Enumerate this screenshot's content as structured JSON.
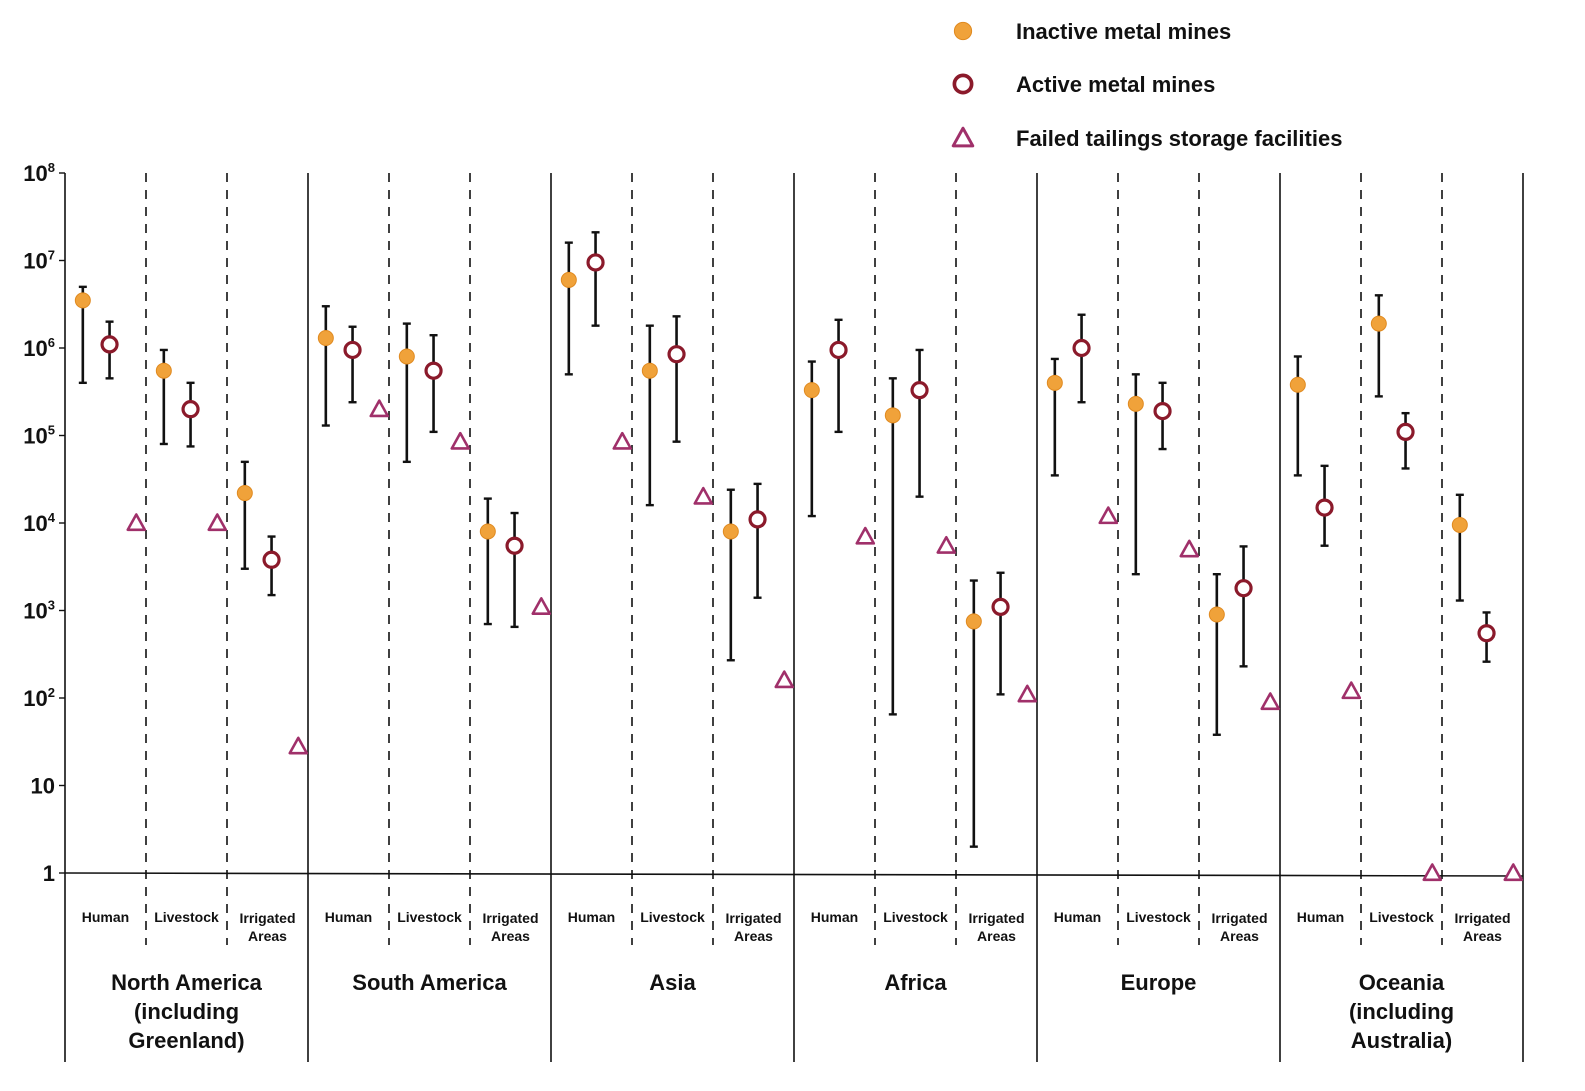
{
  "chart_data": {
    "type": "scatter",
    "title": "",
    "xlabel": "",
    "ylabel": "",
    "yscale": "log",
    "ylim": [
      1,
      100000000
    ],
    "y_ticks": [
      {
        "value": 1,
        "label": "1"
      },
      {
        "value": 10,
        "label": "10"
      },
      {
        "value": 100,
        "base": "10",
        "exp": "2"
      },
      {
        "value": 1000,
        "base": "10",
        "exp": "3"
      },
      {
        "value": 10000,
        "base": "10",
        "exp": "4"
      },
      {
        "value": 100000,
        "base": "10",
        "exp": "5"
      },
      {
        "value": 1000000,
        "base": "10",
        "exp": "6"
      },
      {
        "value": 10000000,
        "base": "10",
        "exp": "7"
      },
      {
        "value": 100000000,
        "base": "10",
        "exp": "8"
      }
    ],
    "legend_position": "top-right",
    "colors": {
      "inactive": "#f0a23a",
      "active": "#8b1a2b",
      "failed": "#a0306a",
      "axis": "#111111"
    },
    "series": [
      {
        "key": "inactive",
        "name": "Inactive metal mines",
        "marker": "filled-circle"
      },
      {
        "key": "active",
        "name": "Active metal mines",
        "marker": "open-circle"
      },
      {
        "key": "failed",
        "name": "Failed tailings storage facilities",
        "marker": "open-triangle"
      }
    ],
    "regions": [
      {
        "label_lines": [
          "North America",
          "(including",
          "Greenland)"
        ],
        "categories": [
          {
            "label_lines": [
              "Human"
            ],
            "inactive": {
              "value": 3500000,
              "low": 400000,
              "high": 5000000
            },
            "active": {
              "value": 1100000,
              "low": 450000,
              "high": 2000000
            },
            "failed": 10000
          },
          {
            "label_lines": [
              "Livestock"
            ],
            "inactive": {
              "value": 550000,
              "low": 80000,
              "high": 950000
            },
            "active": {
              "value": 200000,
              "low": 75000,
              "high": 400000
            },
            "failed": 10000
          },
          {
            "label_lines": [
              "Irrigated",
              "Areas"
            ],
            "inactive": {
              "value": 22000,
              "low": 3000,
              "high": 50000
            },
            "active": {
              "value": 3800,
              "low": 1500,
              "high": 7000
            },
            "failed": 28
          }
        ]
      },
      {
        "label_lines": [
          "South America"
        ],
        "categories": [
          {
            "label_lines": [
              "Human"
            ],
            "inactive": {
              "value": 1300000,
              "low": 130000,
              "high": 3000000
            },
            "active": {
              "value": 950000,
              "low": 240000,
              "high": 1750000
            },
            "failed": 200000
          },
          {
            "label_lines": [
              "Livestock"
            ],
            "inactive": {
              "value": 800000,
              "low": 50000,
              "high": 1900000
            },
            "active": {
              "value": 550000,
              "low": 110000,
              "high": 1400000
            },
            "failed": 85000
          },
          {
            "label_lines": [
              "Irrigated",
              "Areas"
            ],
            "inactive": {
              "value": 8000,
              "low": 700,
              "high": 19000
            },
            "active": {
              "value": 5500,
              "low": 650,
              "high": 13000
            },
            "failed": 1100
          }
        ]
      },
      {
        "label_lines": [
          "Asia"
        ],
        "categories": [
          {
            "label_lines": [
              "Human"
            ],
            "inactive": {
              "value": 6000000,
              "low": 500000,
              "high": 16000000
            },
            "active": {
              "value": 9500000,
              "low": 1800000,
              "high": 21000000
            },
            "failed": 85000
          },
          {
            "label_lines": [
              "Livestock"
            ],
            "inactive": {
              "value": 550000,
              "low": 16000,
              "high": 1800000
            },
            "active": {
              "value": 850000,
              "low": 85000,
              "high": 2300000
            },
            "failed": 20000
          },
          {
            "label_lines": [
              "Irrigated",
              "Areas"
            ],
            "inactive": {
              "value": 8000,
              "low": 270,
              "high": 24000
            },
            "active": {
              "value": 11000,
              "low": 1400,
              "high": 28000
            },
            "failed": 160
          }
        ]
      },
      {
        "label_lines": [
          "Africa"
        ],
        "categories": [
          {
            "label_lines": [
              "Human"
            ],
            "inactive": {
              "value": 330000,
              "low": 12000,
              "high": 700000
            },
            "active": {
              "value": 950000,
              "low": 110000,
              "high": 2100000
            },
            "failed": 7000
          },
          {
            "label_lines": [
              "Livestock"
            ],
            "inactive": {
              "value": 170000,
              "low": 65,
              "high": 450000
            },
            "active": {
              "value": 330000,
              "low": 20000,
              "high": 950000
            },
            "failed": 5500
          },
          {
            "label_lines": [
              "Irrigated",
              "Areas"
            ],
            "inactive": {
              "value": 750,
              "low": 2,
              "high": 2200
            },
            "active": {
              "value": 1100,
              "low": 110,
              "high": 2700
            },
            "failed": 110
          }
        ]
      },
      {
        "label_lines": [
          "Europe"
        ],
        "categories": [
          {
            "label_lines": [
              "Human"
            ],
            "inactive": {
              "value": 400000,
              "low": 35000,
              "high": 750000
            },
            "active": {
              "value": 1000000,
              "low": 240000,
              "high": 2400000
            },
            "failed": 12000
          },
          {
            "label_lines": [
              "Livestock"
            ],
            "inactive": {
              "value": 230000,
              "low": 2600,
              "high": 500000
            },
            "active": {
              "value": 190000,
              "low": 70000,
              "high": 400000
            },
            "failed": 5000
          },
          {
            "label_lines": [
              "Irrigated",
              "Areas"
            ],
            "inactive": {
              "value": 900,
              "low": 38,
              "high": 2600
            },
            "active": {
              "value": 1800,
              "low": 230,
              "high": 5400
            },
            "failed": 90
          }
        ]
      },
      {
        "label_lines": [
          "Oceania",
          "(including",
          "Australia)"
        ],
        "categories": [
          {
            "label_lines": [
              "Human"
            ],
            "inactive": {
              "value": 380000,
              "low": 35000,
              "high": 800000
            },
            "active": {
              "value": 15000,
              "low": 5500,
              "high": 45000
            },
            "failed": 120
          },
          {
            "label_lines": [
              "Livestock"
            ],
            "inactive": {
              "value": 1900000,
              "low": 280000,
              "high": 4000000
            },
            "active": {
              "value": 110000,
              "low": 42000,
              "high": 180000
            },
            "failed": 1
          },
          {
            "label_lines": [
              "Irrigated",
              "Areas"
            ],
            "inactive": {
              "value": 9500,
              "low": 1300,
              "high": 21000
            },
            "active": {
              "value": 550,
              "low": 260,
              "high": 950
            },
            "failed": 1
          }
        ]
      }
    ]
  }
}
